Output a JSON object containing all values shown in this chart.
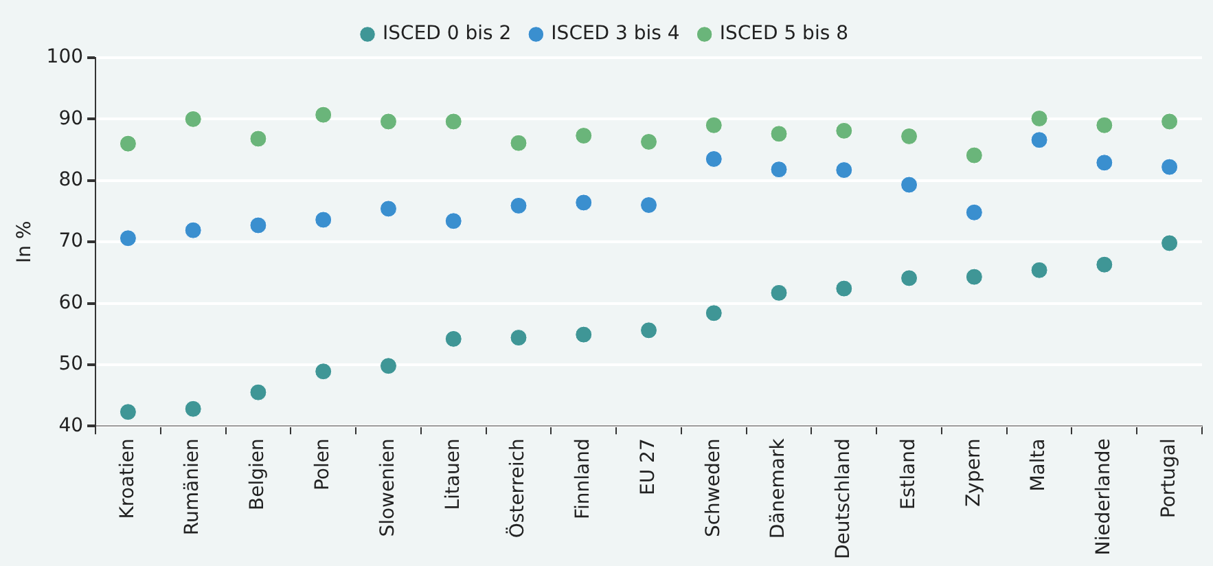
{
  "chart_data": {
    "type": "scatter",
    "ylabel": "In %",
    "categories": [
      "Kroatien",
      "Rumänien",
      "Belgien",
      "Polen",
      "Slowenien",
      "Litauen",
      "Österreich",
      "Finnland",
      "EU 27",
      "Schweden",
      "Dänemark",
      "Deutschland",
      "Estland",
      "Zypern",
      "Malta",
      "Niederlande",
      "Portugal"
    ],
    "series": [
      {
        "name": "ISCED 0 bis 2",
        "color": "#3f9696",
        "values": [
          42.3,
          42.8,
          45.5,
          48.9,
          49.8,
          54.2,
          54.4,
          54.9,
          55.6,
          58.4,
          61.7,
          62.4,
          64.1,
          64.3,
          65.4,
          66.3,
          69.8
        ]
      },
      {
        "name": "ISCED 3 bis 4",
        "color": "#3a8fcf",
        "values": [
          70.6,
          71.9,
          72.7,
          73.6,
          75.4,
          73.4,
          75.9,
          76.4,
          76.0,
          83.5,
          81.8,
          81.7,
          79.3,
          74.8,
          86.6,
          82.9,
          82.2
        ]
      },
      {
        "name": "ISCED 5 bis 8",
        "color": "#6ab57a",
        "values": [
          86.0,
          90.0,
          86.8,
          90.7,
          89.6,
          89.6,
          86.1,
          87.3,
          86.3,
          89.0,
          87.6,
          88.1,
          87.2,
          84.1,
          90.1,
          89.0,
          89.6
        ]
      }
    ],
    "ylim": [
      40,
      100
    ],
    "yticks": [
      40,
      50,
      60,
      70,
      80,
      90,
      100
    ],
    "grid": "y",
    "legend": "top",
    "marker": "circle"
  }
}
